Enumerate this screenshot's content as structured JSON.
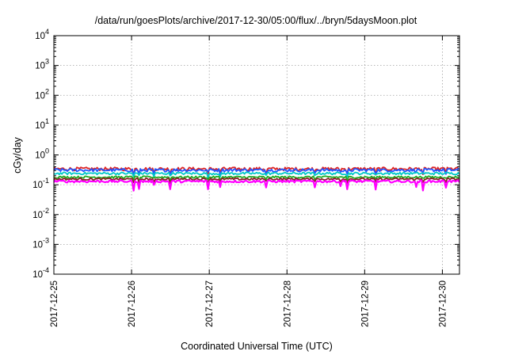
{
  "chart_data": {
    "type": "line",
    "title": "/data/run/goesPlots/archive/2017-12-30/05:00/flux/../bryn/5daysMoon.plot",
    "xlabel": "Coordinated Universal Time (UTC)",
    "ylabel": "cGy/day",
    "yscale": "log",
    "ylim": [
      0.0001,
      10000
    ],
    "xlim_days": [
      0,
      5.22
    ],
    "x_ticks": [
      "2017-12-25",
      "2017-12-26",
      "2017-12-27",
      "2017-12-28",
      "2017-12-29",
      "2017-12-30"
    ],
    "y_ticks": [
      {
        "base": "10",
        "exp": "-4"
      },
      {
        "base": "10",
        "exp": "-3"
      },
      {
        "base": "10",
        "exp": "-2"
      },
      {
        "base": "10",
        "exp": "-1"
      },
      {
        "base": "10",
        "exp": "0"
      },
      {
        "base": "10",
        "exp": "1"
      },
      {
        "base": "10",
        "exp": "2"
      },
      {
        "base": "10",
        "exp": "3"
      },
      {
        "base": "10",
        "exp": "4"
      }
    ],
    "grid": true,
    "series": [
      {
        "color": "#dd2222",
        "level": 0.34,
        "jitter": 0.13,
        "dip_prob": 0.05,
        "dip_depth": 0.35
      },
      {
        "color": "#2255ff",
        "level": 0.31,
        "jitter": 0.12,
        "dip_prob": 0.05,
        "dip_depth": 0.35
      },
      {
        "color": "#00c8c8",
        "level": 0.24,
        "jitter": 0.09,
        "dip_prob": 0.04,
        "dip_depth": 0.25
      },
      {
        "color": "#22aa22",
        "level": 0.18,
        "jitter": 0.08,
        "dip_prob": 0.04,
        "dip_depth": 0.22
      },
      {
        "color": "#882222",
        "level": 0.155,
        "jitter": 0.08,
        "dip_prob": 0.05,
        "dip_depth": 0.28
      },
      {
        "color": "#ff00ff",
        "level": 0.13,
        "jitter": 0.09,
        "dip_prob": 0.08,
        "dip_depth": 0.55
      }
    ]
  }
}
